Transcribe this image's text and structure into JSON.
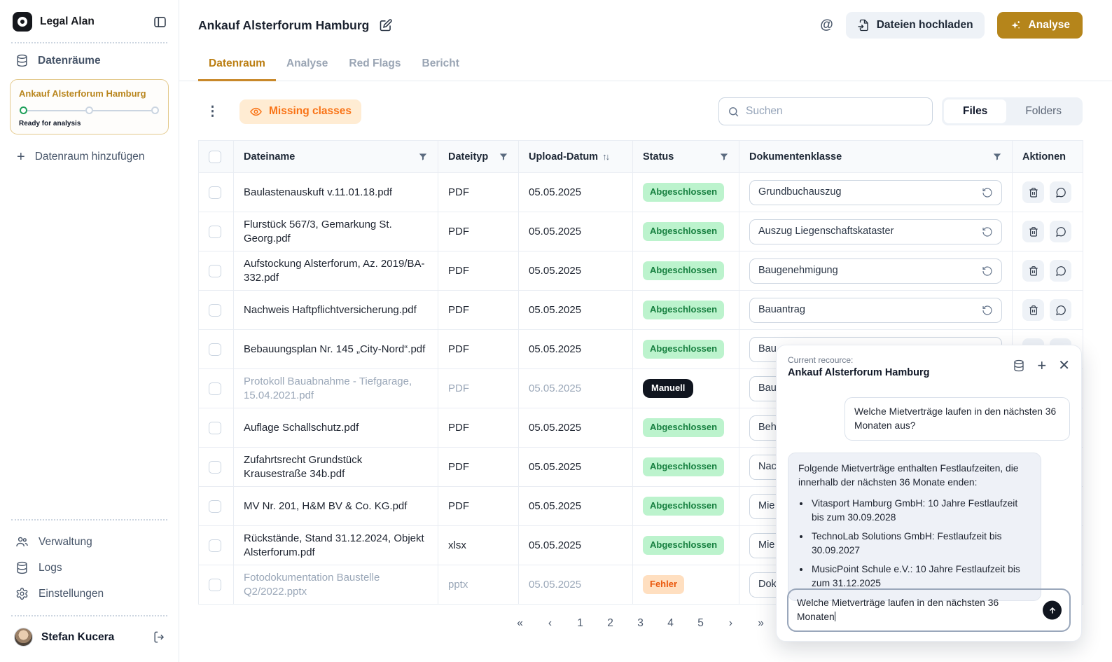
{
  "app": {
    "name": "Legal Alan"
  },
  "colors": {
    "accent_gold": "#b5851b",
    "tab_active": "#bb7e12",
    "missing_badge_bg": "#ffecd3",
    "missing_badge_text": "#f97316",
    "status_done_bg": "#bcf3cd",
    "status_done_text": "#178040",
    "status_manual_bg": "#10151f",
    "status_error_bg": "#ffdfc0",
    "status_error_text": "#ea580c",
    "card_border_gold": "#e4ca8e",
    "step_done_green": "#1fa05a"
  },
  "sidebar": {
    "datenraeume_label": "Datenräume",
    "dataroom_card": {
      "title": "Ankauf Alsterforum Hamburg",
      "status": "Ready for analysis"
    },
    "add_dataroom_label": "Datenraum hinzufügen",
    "bottom_items": [
      {
        "label": "Verwaltung",
        "icon": "users-icon"
      },
      {
        "label": "Logs",
        "icon": "database-icon"
      },
      {
        "label": "Einstellungen",
        "icon": "gear-icon"
      }
    ],
    "user_name": "Stefan Kucera"
  },
  "header": {
    "title": "Ankauf Alsterforum Hamburg",
    "upload_label": "Dateien hochladen",
    "analyse_label": "Analyse"
  },
  "tabs": [
    {
      "label": "Datenraum",
      "active": true
    },
    {
      "label": "Analyse",
      "active": false
    },
    {
      "label": "Red Flags",
      "active": false
    },
    {
      "label": "Bericht",
      "active": false
    }
  ],
  "toolbar": {
    "missing_classes_label": "Missing classes",
    "search_placeholder": "Suchen",
    "files_label": "Files",
    "folders_label": "Folders",
    "active_view": "Files"
  },
  "table": {
    "columns": [
      "Dateiname",
      "Dateityp",
      "Upload-Datum",
      "Status",
      "Dokumentenklasse",
      "Aktionen"
    ],
    "rows": [
      {
        "name": "Baulastenauskuft v.11.01.18.pdf",
        "type": "PDF",
        "date": "05.05.2025",
        "status": "Abgeschlossen",
        "status_kind": "done",
        "doc_class": "Grundbuchauszug",
        "muted": false
      },
      {
        "name": "Flurstück 567/3, Gemarkung St. Georg.pdf",
        "type": "PDF",
        "date": "05.05.2025",
        "status": "Abgeschlossen",
        "status_kind": "done",
        "doc_class": "Auszug Liegenschaftskataster",
        "muted": false
      },
      {
        "name": "Aufstockung Alsterforum, Az. 2019/BA-332.pdf",
        "type": "PDF",
        "date": "05.05.2025",
        "status": "Abgeschlossen",
        "status_kind": "done",
        "doc_class": "Baugenehmigung",
        "muted": false
      },
      {
        "name": "Nachweis Haftpflichtversicherung.pdf",
        "type": "PDF",
        "date": "05.05.2025",
        "status": "Abgeschlossen",
        "status_kind": "done",
        "doc_class": "Bauantrag",
        "muted": false
      },
      {
        "name": "Bebauungsplan Nr. 145 „City-Nord“.pdf",
        "type": "PDF",
        "date": "05.05.2025",
        "status": "Abgeschlossen",
        "status_kind": "done",
        "doc_class": "Bau",
        "muted": false
      },
      {
        "name": "Protokoll Bauabnahme - Tiefgarage, 15.04.2021.pdf",
        "type": "PDF",
        "date": "05.05.2025",
        "status": "Manuell",
        "status_kind": "manual",
        "doc_class": "Bau",
        "muted": true
      },
      {
        "name": "Auflage Schallschutz.pdf",
        "type": "PDF",
        "date": "05.05.2025",
        "status": "Abgeschlossen",
        "status_kind": "done",
        "doc_class": "Beh",
        "muted": false
      },
      {
        "name": "Zufahrtsrecht Grundstück Krausestraße 34b.pdf",
        "type": "PDF",
        "date": "05.05.2025",
        "status": "Abgeschlossen",
        "status_kind": "done",
        "doc_class": "Nac",
        "muted": false
      },
      {
        "name": "MV Nr. 201, H&M BV & Co. KG.pdf",
        "type": "PDF",
        "date": "05.05.2025",
        "status": "Abgeschlossen",
        "status_kind": "done",
        "doc_class": "Mie",
        "muted": false
      },
      {
        "name": "Rückstände, Stand 31.12.2024, Objekt Alsterforum.pdf",
        "type": "xlsx",
        "date": "05.05.2025",
        "status": "Abgeschlossen",
        "status_kind": "done",
        "doc_class": "Mie",
        "muted": false
      },
      {
        "name": "Fotodokumentation Baustelle Q2/2022.pptx",
        "type": "pptx",
        "date": "05.05.2025",
        "status": "Fehler",
        "status_kind": "error",
        "doc_class": "Dok",
        "muted": true
      }
    ]
  },
  "pagination": {
    "items": [
      "«",
      "‹",
      "1",
      "2",
      "3",
      "4",
      "5",
      "›",
      "»"
    ]
  },
  "chat": {
    "resource_label": "Current recource:",
    "resource_name": "Ankauf Alsterforum Hamburg",
    "user_message": "Welche Mietverträge laufen in den nächsten 36 Monaten aus?",
    "assistant_intro": "Folgende Mietverträge enthalten Festlaufzeiten, die innerhalb der nächsten 36 Monate enden:",
    "assistant_bullets": [
      "Vitasport Hamburg GmbH: 10 Jahre Festlaufzeit bis zum 30.09.2028",
      "TechnoLab Solutions GmbH: Festlaufzeit bis 30.09.2027",
      "MusicPoint Schule e.V.: 10 Jahre Festlaufzeit bis zum 31.12.2025"
    ],
    "input_value": "Welche Mietverträge laufen in den nächsten 36 Monaten"
  }
}
